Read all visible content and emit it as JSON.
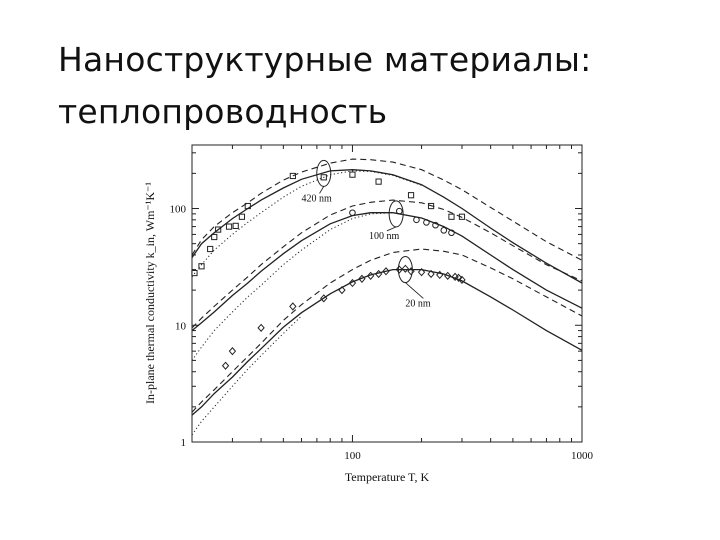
{
  "slide": {
    "title_line1": "Наноструктурные материалы:",
    "title_line2": "теплопроводность"
  },
  "chart_data": {
    "type": "line",
    "xlabel": "Temperature T, K",
    "ylabel": "In-plane thermal conductivity k_in, Wm⁻¹K⁻¹",
    "xscale": "log",
    "yscale": "log",
    "xlim": [
      20,
      1000
    ],
    "ylim": [
      1,
      350
    ],
    "xticks": [
      100,
      1000
    ],
    "yticks": [
      1,
      10,
      100
    ],
    "grid": false,
    "annotations": [
      {
        "text": "420 nm",
        "x": 75,
        "y": 200,
        "label_x": 60,
        "label_y": 115
      },
      {
        "text": "100 nm",
        "x": 155,
        "y": 90,
        "label_x": 118,
        "label_y": 55
      },
      {
        "text": "20 nm",
        "x": 170,
        "y": 30,
        "label_x": 170,
        "label_y": 14.5
      }
    ],
    "series": [
      {
        "group": "420 nm",
        "style": "solid",
        "x": [
          20,
          22,
          25,
          30,
          35,
          40,
          50,
          60,
          80,
          100,
          120,
          150,
          200,
          250,
          300,
          400,
          500,
          700,
          1000
        ],
        "y": [
          38,
          50,
          62,
          82,
          100,
          118,
          150,
          178,
          210,
          215,
          210,
          195,
          160,
          125,
          100,
          68,
          51,
          34,
          23
        ]
      },
      {
        "group": "420 nm",
        "style": "dashed",
        "x": [
          20,
          22,
          25,
          30,
          35,
          40,
          50,
          60,
          80,
          100,
          120,
          150,
          200,
          250,
          300,
          400,
          500,
          700,
          1000
        ],
        "y": [
          40,
          54,
          70,
          92,
          112,
          135,
          175,
          205,
          245,
          265,
          262,
          250,
          215,
          175,
          145,
          102,
          78,
          52,
          36
        ]
      },
      {
        "group": "420 nm",
        "style": "dotted",
        "x": [
          20,
          22,
          25,
          30,
          35,
          40,
          50,
          60,
          80,
          100,
          120,
          150,
          200
        ],
        "y": [
          26,
          33,
          44,
          60,
          76,
          92,
          125,
          155,
          195,
          210,
          208,
          192,
          158
        ]
      },
      {
        "group": "100 nm",
        "style": "solid",
        "x": [
          20,
          22,
          25,
          30,
          35,
          40,
          50,
          60,
          80,
          100,
          120,
          150,
          200,
          250,
          300,
          400,
          500,
          700,
          1000
        ],
        "y": [
          9,
          10.5,
          13,
          18,
          23,
          29,
          41,
          53,
          74,
          87,
          92,
          92,
          83,
          70,
          58,
          40,
          30,
          20,
          14
        ]
      },
      {
        "group": "100 nm",
        "style": "dashed",
        "x": [
          20,
          22,
          25,
          30,
          35,
          40,
          50,
          60,
          80,
          100,
          120,
          150,
          200,
          250,
          300,
          400,
          500,
          700,
          1000
        ],
        "y": [
          9.5,
          11.5,
          14.5,
          20,
          26,
          33,
          47,
          62,
          88,
          105,
          113,
          118,
          112,
          98,
          84,
          62,
          48,
          33,
          24
        ]
      },
      {
        "group": "100 nm",
        "style": "dotted",
        "x": [
          20,
          22,
          25,
          30,
          35,
          40,
          50,
          60,
          80,
          100,
          120,
          150
        ],
        "y": [
          5,
          6.5,
          9,
          13,
          17.5,
          22,
          33,
          44,
          66,
          82,
          90,
          92
        ]
      },
      {
        "group": "20 nm",
        "style": "solid",
        "x": [
          20,
          22,
          25,
          30,
          35,
          40,
          50,
          60,
          80,
          100,
          120,
          150,
          200,
          250,
          300,
          400,
          500,
          700,
          1000
        ],
        "y": [
          1.7,
          2,
          2.6,
          3.6,
          4.9,
          6.3,
          9.6,
          12.8,
          18.6,
          23.5,
          27,
          30,
          30,
          27.5,
          24,
          17.5,
          13.5,
          9,
          6.1
        ]
      },
      {
        "group": "20 nm",
        "style": "dashed",
        "x": [
          20,
          22,
          25,
          30,
          35,
          40,
          50,
          60,
          80,
          100,
          120,
          150,
          200,
          250,
          300,
          400,
          500,
          700,
          1000
        ],
        "y": [
          1.8,
          2.2,
          2.8,
          4,
          5.4,
          7,
          11,
          15,
          23,
          30,
          36,
          42,
          45,
          43,
          40,
          31,
          25,
          17.5,
          12
        ]
      },
      {
        "group": "20 nm",
        "style": "dotted",
        "x": [
          20,
          22,
          25,
          30,
          35,
          40,
          50,
          60
        ],
        "y": [
          1.15,
          1.5,
          2,
          3,
          4.2,
          5.5,
          8.5,
          12
        ]
      }
    ],
    "points": [
      {
        "group": "420 nm",
        "marker": "square",
        "x": [
          20.5,
          22,
          24,
          25,
          26,
          29,
          31,
          33,
          35,
          55,
          75,
          100,
          130,
          180,
          220,
          270,
          300
        ],
        "y": [
          28,
          32,
          45,
          57,
          66,
          70,
          71,
          85,
          105,
          190,
          185,
          195,
          170,
          130,
          105,
          85,
          85
        ]
      },
      {
        "group": "100 nm",
        "marker": "circle",
        "x": [
          100,
          160,
          190,
          210,
          230,
          250,
          270
        ],
        "y": [
          92,
          95,
          80,
          76,
          72,
          65,
          62
        ]
      },
      {
        "group": "20 nm",
        "marker": "diamond",
        "x": [
          28,
          30,
          40,
          55,
          75,
          90,
          100,
          110,
          120,
          130,
          140,
          160,
          170,
          180,
          200,
          220,
          240,
          260,
          280,
          290,
          300
        ],
        "y": [
          4.5,
          6,
          9.5,
          14.5,
          17,
          20,
          23,
          25,
          26.5,
          27.5,
          29,
          30,
          30.5,
          29,
          28.5,
          27.5,
          27,
          26.5,
          26,
          25.5,
          24.5
        ]
      }
    ]
  }
}
